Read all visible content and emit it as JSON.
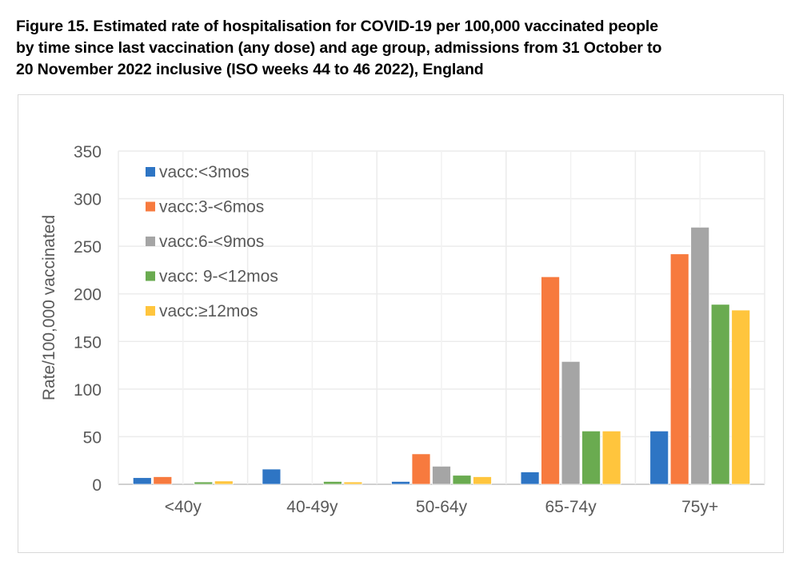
{
  "caption": {
    "lines": [
      "Figure 15. Estimated rate of hospitalisation for COVID-19 per 100,000 vaccinated people",
      "by time since last vaccination (any dose) and age group, admissions from 31 October to",
      "20 November 2022 inclusive (ISO weeks 44 to 46 2022), England"
    ]
  },
  "chart_data": {
    "type": "bar",
    "title": "Figure 15. Estimated rate of hospitalisation for COVID-19 per 100,000 vaccinated people by time since last vaccination (any dose) and age group, admissions from 31 October to 20 November 2022 inclusive (ISO weeks 44 to 46 2022), England",
    "xlabel": "",
    "ylabel": "Rate/100,000 vaccinated",
    "ylim": [
      0,
      350
    ],
    "yticks": [
      0,
      50,
      100,
      150,
      200,
      250,
      300,
      350
    ],
    "grid": true,
    "legend_position": "top-left",
    "categories": [
      "<40y",
      "40-49y",
      "50-64y",
      "65-74y",
      "75y+"
    ],
    "series": [
      {
        "name": "vacc:<3mos",
        "color": "#2e75c4",
        "values": [
          7,
          16,
          3,
          13,
          56
        ]
      },
      {
        "name": "vacc:3-<6mos",
        "color": "#f77a3e",
        "values": [
          8,
          0,
          32,
          218,
          242
        ]
      },
      {
        "name": "vacc:6-<9mos",
        "color": "#a5a5a5",
        "values": [
          0,
          0,
          19,
          129,
          270
        ]
      },
      {
        "name": "vacc: 9-<12mos",
        "color": "#6aab50",
        "values": [
          2.5,
          3,
          9.5,
          56,
          189
        ]
      },
      {
        "name": "vacc:≥12mos",
        "color": "#ffc53d",
        "values": [
          3.5,
          2.5,
          8,
          56,
          183
        ]
      }
    ]
  }
}
